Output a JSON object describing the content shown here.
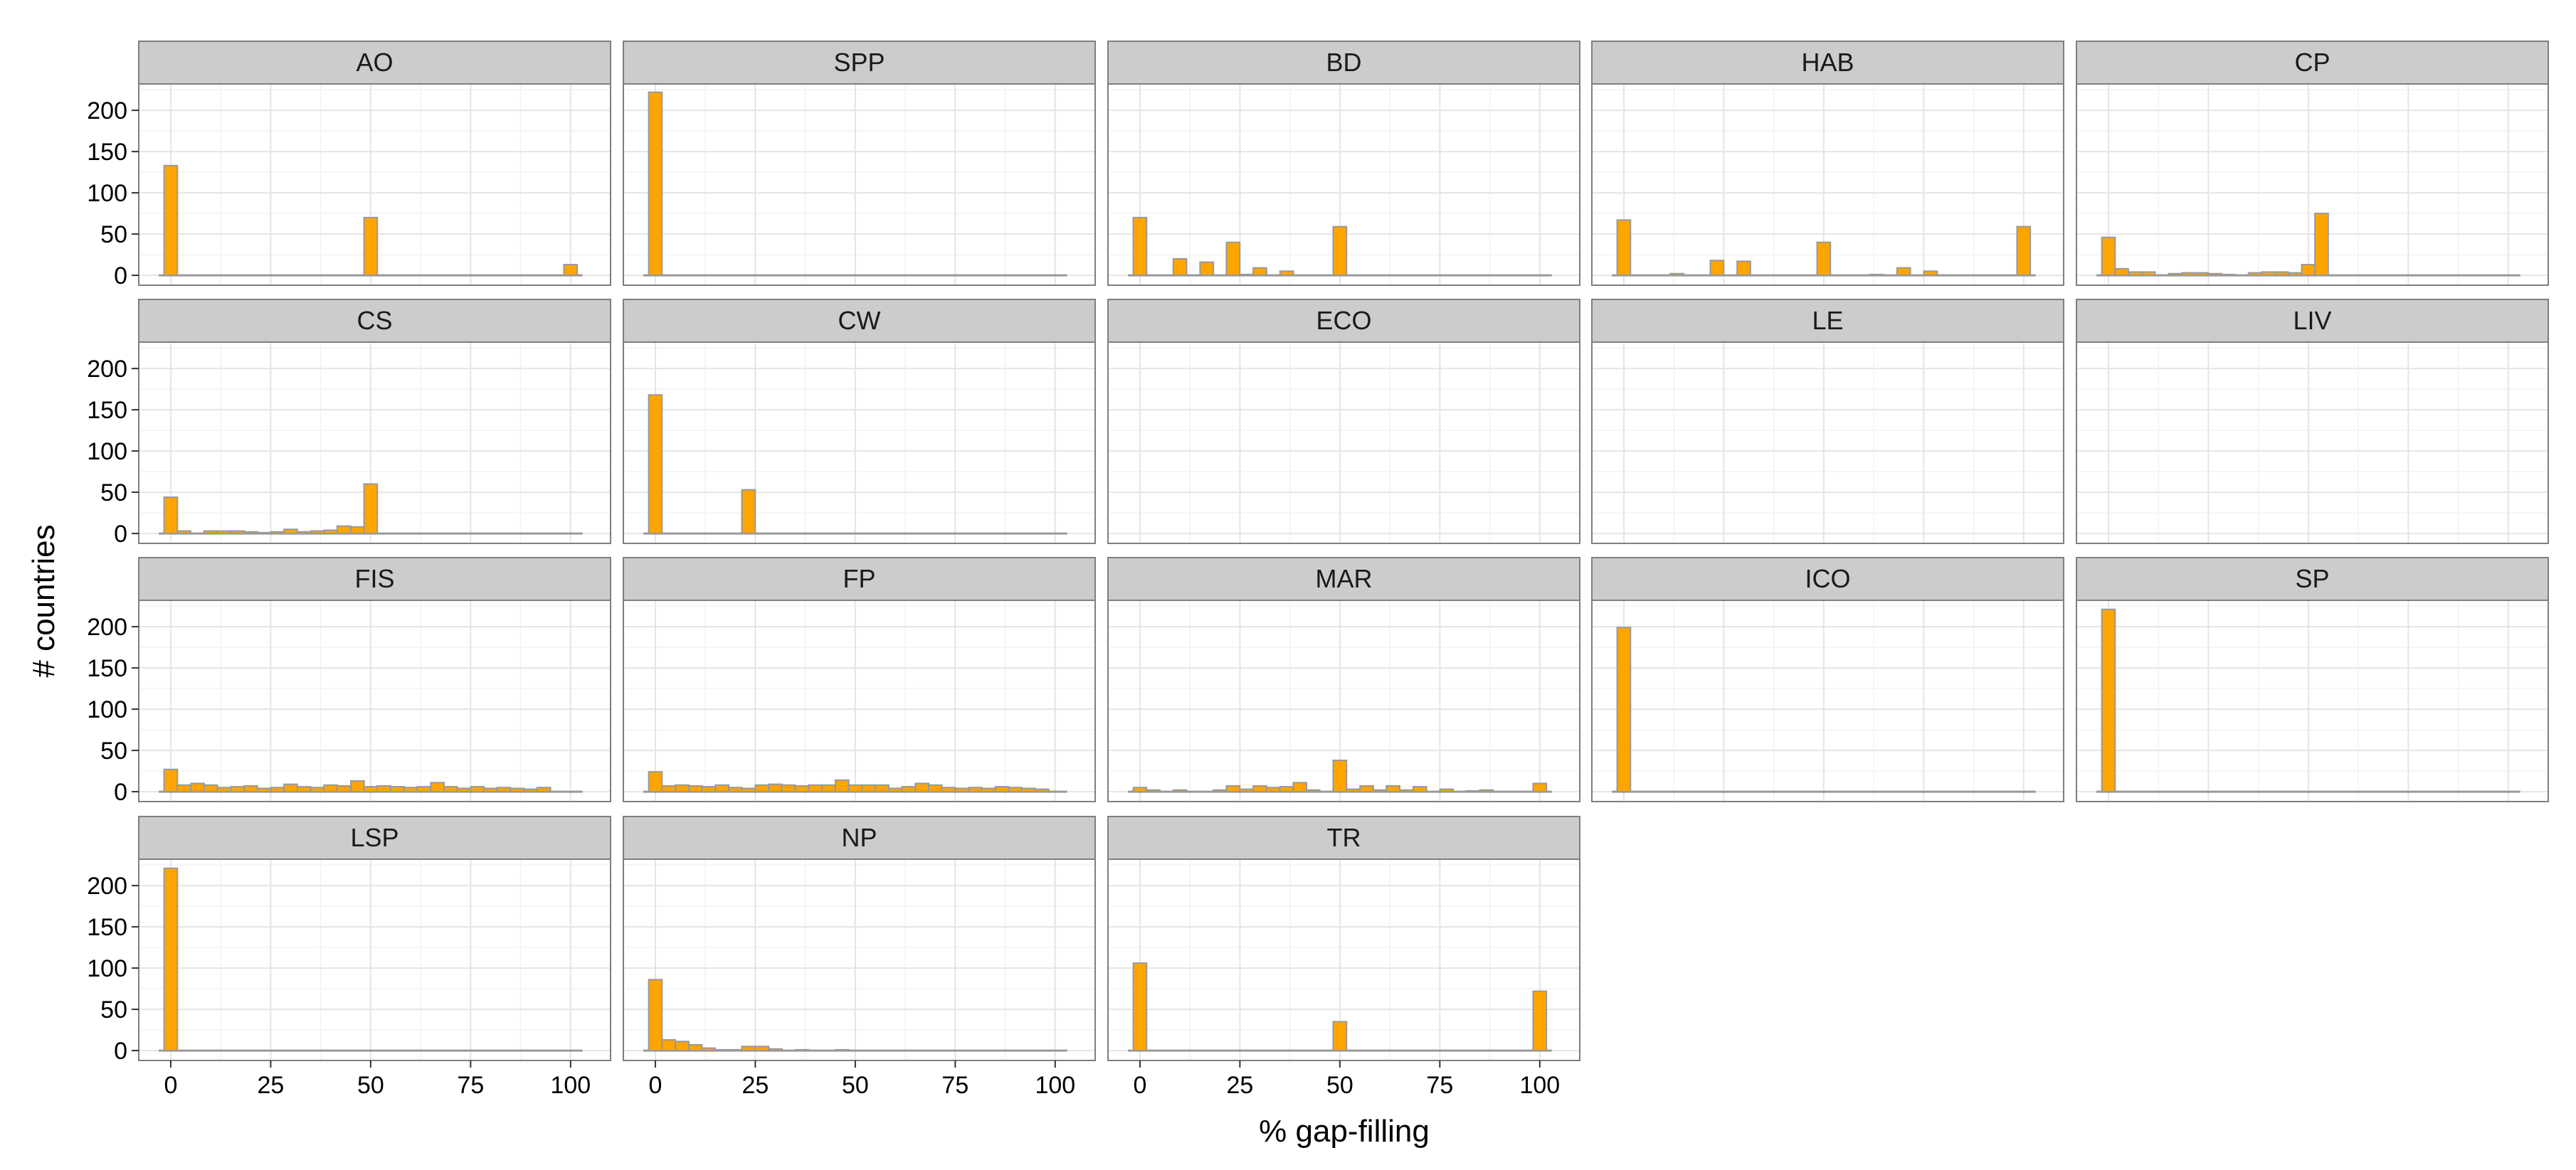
{
  "chart_data": {
    "type": "bar",
    "xlabel": "% gap-filling",
    "ylabel": "# countries",
    "xlim": [
      -8,
      110
    ],
    "ylim": [
      -12,
      232
    ],
    "x_ticks": [
      0,
      25,
      50,
      75,
      100
    ],
    "y_ticks": [
      0,
      50,
      100,
      150,
      200
    ],
    "bin_width": 3.33,
    "grid": true,
    "colors": {
      "bar_fill": "#FFA500",
      "bar_stroke": "#999999",
      "panel_border": "#7f7f7f",
      "strip_fill": "#CCCCCC",
      "grid_major": "#E5E5E5",
      "grid_minor": "#F2F2F2"
    },
    "panels": [
      {
        "name": "AO",
        "bars": [
          [
            0,
            133
          ],
          [
            50,
            70
          ],
          [
            100,
            13
          ]
        ],
        "baseline": [
          -3,
          103
        ]
      },
      {
        "name": "SPP",
        "bars": [
          [
            0,
            222
          ]
        ],
        "baseline": [
          -3,
          103
        ]
      },
      {
        "name": "BD",
        "bars": [
          [
            0,
            70
          ],
          [
            10,
            20
          ],
          [
            16.7,
            16
          ],
          [
            23.3,
            40
          ],
          [
            26.7,
            1
          ],
          [
            30,
            9
          ],
          [
            36.7,
            5
          ],
          [
            50,
            59
          ]
        ],
        "baseline": [
          -3,
          103
        ]
      },
      {
        "name": "HAB",
        "bars": [
          [
            0,
            67
          ],
          [
            13.3,
            2
          ],
          [
            23.3,
            18
          ],
          [
            30,
            17
          ],
          [
            50,
            40
          ],
          [
            63.3,
            1
          ],
          [
            70,
            9
          ],
          [
            76.7,
            5
          ],
          [
            100,
            59
          ]
        ],
        "baseline": [
          -3,
          103
        ]
      },
      {
        "name": "CP",
        "bars": [
          [
            0,
            46
          ],
          [
            3.3,
            8
          ],
          [
            6.7,
            4
          ],
          [
            10,
            4
          ],
          [
            16.7,
            2
          ],
          [
            20,
            3
          ],
          [
            23.3,
            3
          ],
          [
            26.7,
            2
          ],
          [
            30,
            1
          ],
          [
            36.7,
            3
          ],
          [
            40,
            4
          ],
          [
            43.3,
            4
          ],
          [
            46.7,
            3
          ],
          [
            50,
            13
          ],
          [
            53.3,
            75
          ]
        ],
        "baseline": [
          -3,
          103
        ]
      },
      {
        "name": "CS",
        "bars": [
          [
            0,
            44
          ],
          [
            3.3,
            3
          ],
          [
            10,
            3
          ],
          [
            13.3,
            3
          ],
          [
            16.7,
            3
          ],
          [
            20,
            2
          ],
          [
            23.3,
            1
          ],
          [
            26.7,
            2
          ],
          [
            30,
            5
          ],
          [
            33.3,
            2
          ],
          [
            36.7,
            3
          ],
          [
            40,
            4
          ],
          [
            43.3,
            9
          ],
          [
            46.7,
            8
          ],
          [
            50,
            60
          ]
        ],
        "baseline": [
          -3,
          103
        ]
      },
      {
        "name": "CW",
        "bars": [
          [
            0,
            168
          ],
          [
            23.3,
            53
          ]
        ],
        "baseline": [
          -3,
          103
        ]
      },
      {
        "name": "ECO",
        "bars": [],
        "baseline": null
      },
      {
        "name": "LE",
        "bars": [],
        "baseline": null
      },
      {
        "name": "LIV",
        "bars": [],
        "baseline": null
      },
      {
        "name": "FIS",
        "bars": [
          [
            0,
            27
          ],
          [
            3.3,
            8
          ],
          [
            6.7,
            10
          ],
          [
            10,
            8
          ],
          [
            13.3,
            5
          ],
          [
            16.7,
            6
          ],
          [
            20,
            7
          ],
          [
            23.3,
            4
          ],
          [
            26.7,
            5
          ],
          [
            30,
            9
          ],
          [
            33.3,
            6
          ],
          [
            36.7,
            5
          ],
          [
            40,
            8
          ],
          [
            43.3,
            7
          ],
          [
            46.7,
            13
          ],
          [
            50,
            6
          ],
          [
            53.3,
            7
          ],
          [
            56.7,
            6
          ],
          [
            60,
            5
          ],
          [
            63.3,
            6
          ],
          [
            66.7,
            11
          ],
          [
            70,
            6
          ],
          [
            73.3,
            4
          ],
          [
            76.7,
            6
          ],
          [
            80,
            4
          ],
          [
            83.3,
            5
          ],
          [
            86.7,
            4
          ],
          [
            90,
            3
          ],
          [
            93.3,
            5
          ]
        ],
        "baseline": [
          -3,
          103
        ]
      },
      {
        "name": "FP",
        "bars": [
          [
            0,
            24
          ],
          [
            3.3,
            7
          ],
          [
            6.7,
            8
          ],
          [
            10,
            7
          ],
          [
            13.3,
            6
          ],
          [
            16.7,
            8
          ],
          [
            20,
            5
          ],
          [
            23.3,
            4
          ],
          [
            26.7,
            8
          ],
          [
            30,
            9
          ],
          [
            33.3,
            8
          ],
          [
            36.7,
            7
          ],
          [
            40,
            8
          ],
          [
            43.3,
            8
          ],
          [
            46.7,
            14
          ],
          [
            50,
            8
          ],
          [
            53.3,
            8
          ],
          [
            56.7,
            8
          ],
          [
            60,
            4
          ],
          [
            63.3,
            6
          ],
          [
            66.7,
            10
          ],
          [
            70,
            8
          ],
          [
            73.3,
            5
          ],
          [
            76.7,
            4
          ],
          [
            80,
            5
          ],
          [
            83.3,
            4
          ],
          [
            86.7,
            6
          ],
          [
            90,
            5
          ],
          [
            93.3,
            4
          ],
          [
            96.7,
            3
          ]
        ],
        "baseline": [
          -3,
          103
        ]
      },
      {
        "name": "MAR",
        "bars": [
          [
            0,
            5
          ],
          [
            3.3,
            2
          ],
          [
            10,
            2
          ],
          [
            20,
            2
          ],
          [
            23.3,
            7
          ],
          [
            26.7,
            3
          ],
          [
            30,
            7
          ],
          [
            33.3,
            5
          ],
          [
            36.7,
            6
          ],
          [
            40,
            11
          ],
          [
            43.3,
            2
          ],
          [
            50,
            38
          ],
          [
            53.3,
            3
          ],
          [
            56.7,
            7
          ],
          [
            60,
            2
          ],
          [
            63.3,
            7
          ],
          [
            66.7,
            2
          ],
          [
            70,
            6
          ],
          [
            76.7,
            3
          ],
          [
            83.3,
            1
          ],
          [
            86.7,
            2
          ],
          [
            100,
            10
          ]
        ],
        "baseline": [
          -3,
          103
        ]
      },
      {
        "name": "ICO",
        "bars": [
          [
            0,
            199
          ]
        ],
        "baseline": [
          -3,
          103
        ]
      },
      {
        "name": "SP",
        "bars": [
          [
            0,
            221
          ]
        ],
        "baseline": [
          -3,
          103
        ]
      },
      {
        "name": "LSP",
        "bars": [
          [
            0,
            221
          ]
        ],
        "baseline": [
          -3,
          103
        ]
      },
      {
        "name": "NP",
        "bars": [
          [
            0,
            86
          ],
          [
            3.3,
            13
          ],
          [
            6.7,
            11
          ],
          [
            10,
            7
          ],
          [
            13.3,
            3
          ],
          [
            16.7,
            1
          ],
          [
            20,
            1
          ],
          [
            23.3,
            5
          ],
          [
            26.7,
            5
          ],
          [
            30,
            2
          ],
          [
            36.7,
            1
          ],
          [
            46.7,
            1
          ]
        ],
        "baseline": [
          -3,
          103
        ]
      },
      {
        "name": "TR",
        "bars": [
          [
            0,
            106
          ],
          [
            50,
            35
          ],
          [
            100,
            72
          ]
        ],
        "baseline": [
          -3,
          103
        ]
      }
    ]
  }
}
